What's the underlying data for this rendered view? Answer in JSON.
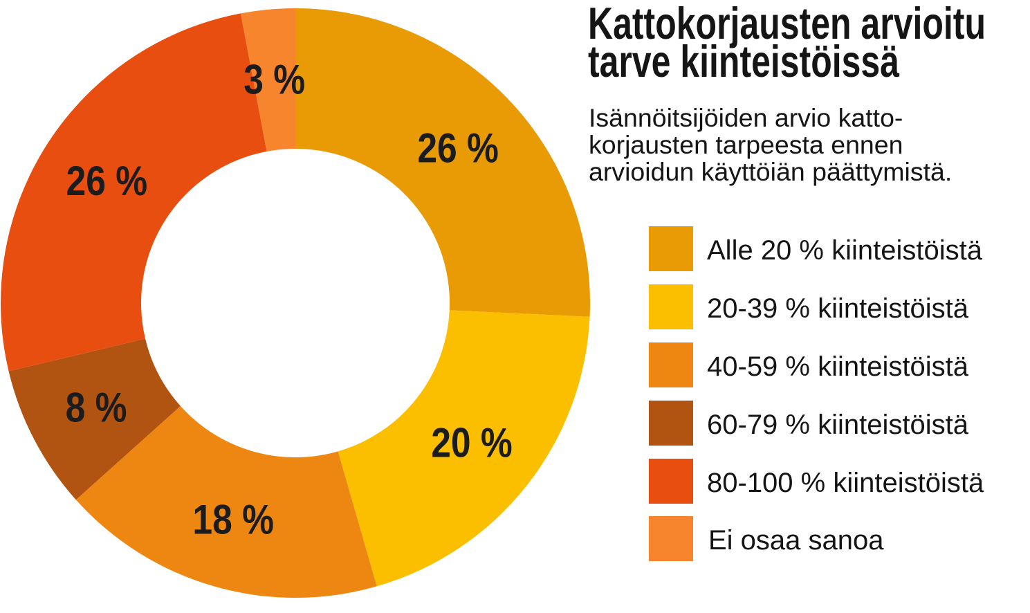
{
  "chart_data": {
    "type": "pie",
    "donut": true,
    "legend_position": "right",
    "title_lines": [
      "Kattokorjausten arvioitu",
      "tarve kiinteistöissä"
    ],
    "subtitle_lines": [
      "Isännöitsijöiden arvio katto-",
      "korjausten tarpeesta ennen",
      "arvioidun käyttöiän päättymistä."
    ],
    "categories": [
      "Alle 20 % kiinteistöistä",
      "20-39 % kiinteistöistä",
      "40-59 % kiinteistöistä",
      "60-79 % kiinteistöistä",
      "80-100 % kiinteistöistä",
      "Ei osaa sanoa"
    ],
    "values": [
      26,
      20,
      18,
      8,
      26,
      3
    ],
    "data_labels": [
      "26 %",
      "20 %",
      "18 %",
      "8 %",
      "26 %",
      "3 %"
    ],
    "colors": [
      "#E89B05",
      "#FCBF00",
      "#EE8711",
      "#B25411",
      "#E84E0F",
      "#F7852D"
    ]
  }
}
